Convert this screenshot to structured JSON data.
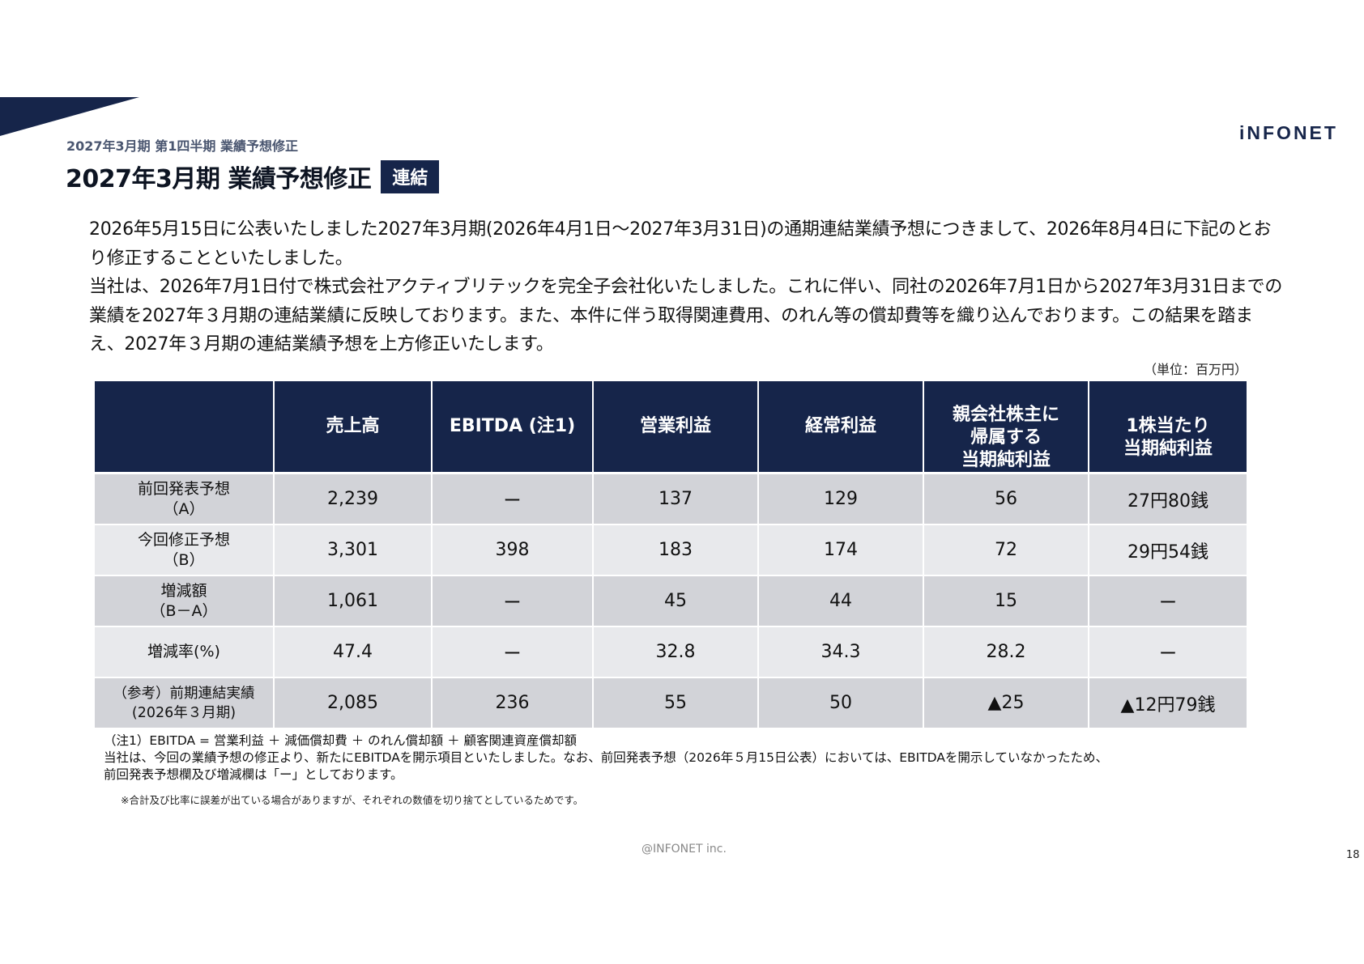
{
  "brand": {
    "logo_text": "iNFONET",
    "accent_color": "#16254a"
  },
  "header": {
    "subtitle": "2027年3月期 第1四半期 業績予想修正",
    "title": "2027年3月期 業績予想修正",
    "badge": "連結"
  },
  "body": {
    "paragraphs": [
      "2026年5月15日に公表いたしました2027年3月期(2026年4月1日～2027年3月31日)の通期連結業績予想につきまして、2026年8月4日に下記のとおり修正することといたしました。",
      "当社は、2026年7月1日付で株式会社アクティブリテックを完全子会社化いたしました。これに伴い、同社の2026年7月1日から2027年3月31日までの業績を2027年３月期の連結業績に反映しております。また、本件に伴う取得関連費用、のれん等の償却費等を織り込んでおります。この結果を踏まえ、2027年３月期の連結業績予想を上方修正いたします。"
    ]
  },
  "table": {
    "unit": "（単位：百万円）",
    "headers": [
      "",
      "売上高",
      "EBITDA (注1)",
      "営業利益",
      "経常利益",
      "親会社株主に\n帰属する\n当期純利益",
      "1株当たり\n当期純利益"
    ],
    "rows": [
      {
        "label": "前回発表予想\n（A）",
        "cells": [
          "2,239",
          "ー",
          "137",
          "129",
          "56",
          "27円80銭"
        ]
      },
      {
        "label": "今回修正予想\n（B）",
        "cells": [
          "3,301",
          "398",
          "183",
          "174",
          "72",
          "29円54銭"
        ]
      },
      {
        "label": "増減額\n（B－A）",
        "cells": [
          "1,061",
          "ー",
          "45",
          "44",
          "15",
          "ー"
        ]
      },
      {
        "label": "増減率(%)",
        "cells": [
          "47.4",
          "ー",
          "32.8",
          "34.3",
          "28.2",
          "ー"
        ]
      },
      {
        "label": "（参考）前期連結実績\n(2026年３月期)",
        "cells": [
          "2,085",
          "236",
          "55",
          "50",
          "▲25",
          "▲12円79銭"
        ]
      }
    ]
  },
  "notes": {
    "lines": [
      "（注1）EBITDA = 営業利益 ＋ 減価償却費 ＋ のれん償却額 ＋ 顧客関連資産償却額",
      "当社は、今回の業績予想の修正より、新たにEBITDAを開示項目といたしました。なお、前回発表予想（2026年５月15日公表）においては、EBITDAを開示していなかったため、",
      "前回発表予想欄及び増減欄は「ー」としております。"
    ],
    "disclaimer": "※合計及び比率に誤差が出ている場合がありますが、それぞれの数値を切り捨てとしているためです。"
  },
  "footer": {
    "copyright": "@INFONET inc.",
    "page_number": "18"
  }
}
